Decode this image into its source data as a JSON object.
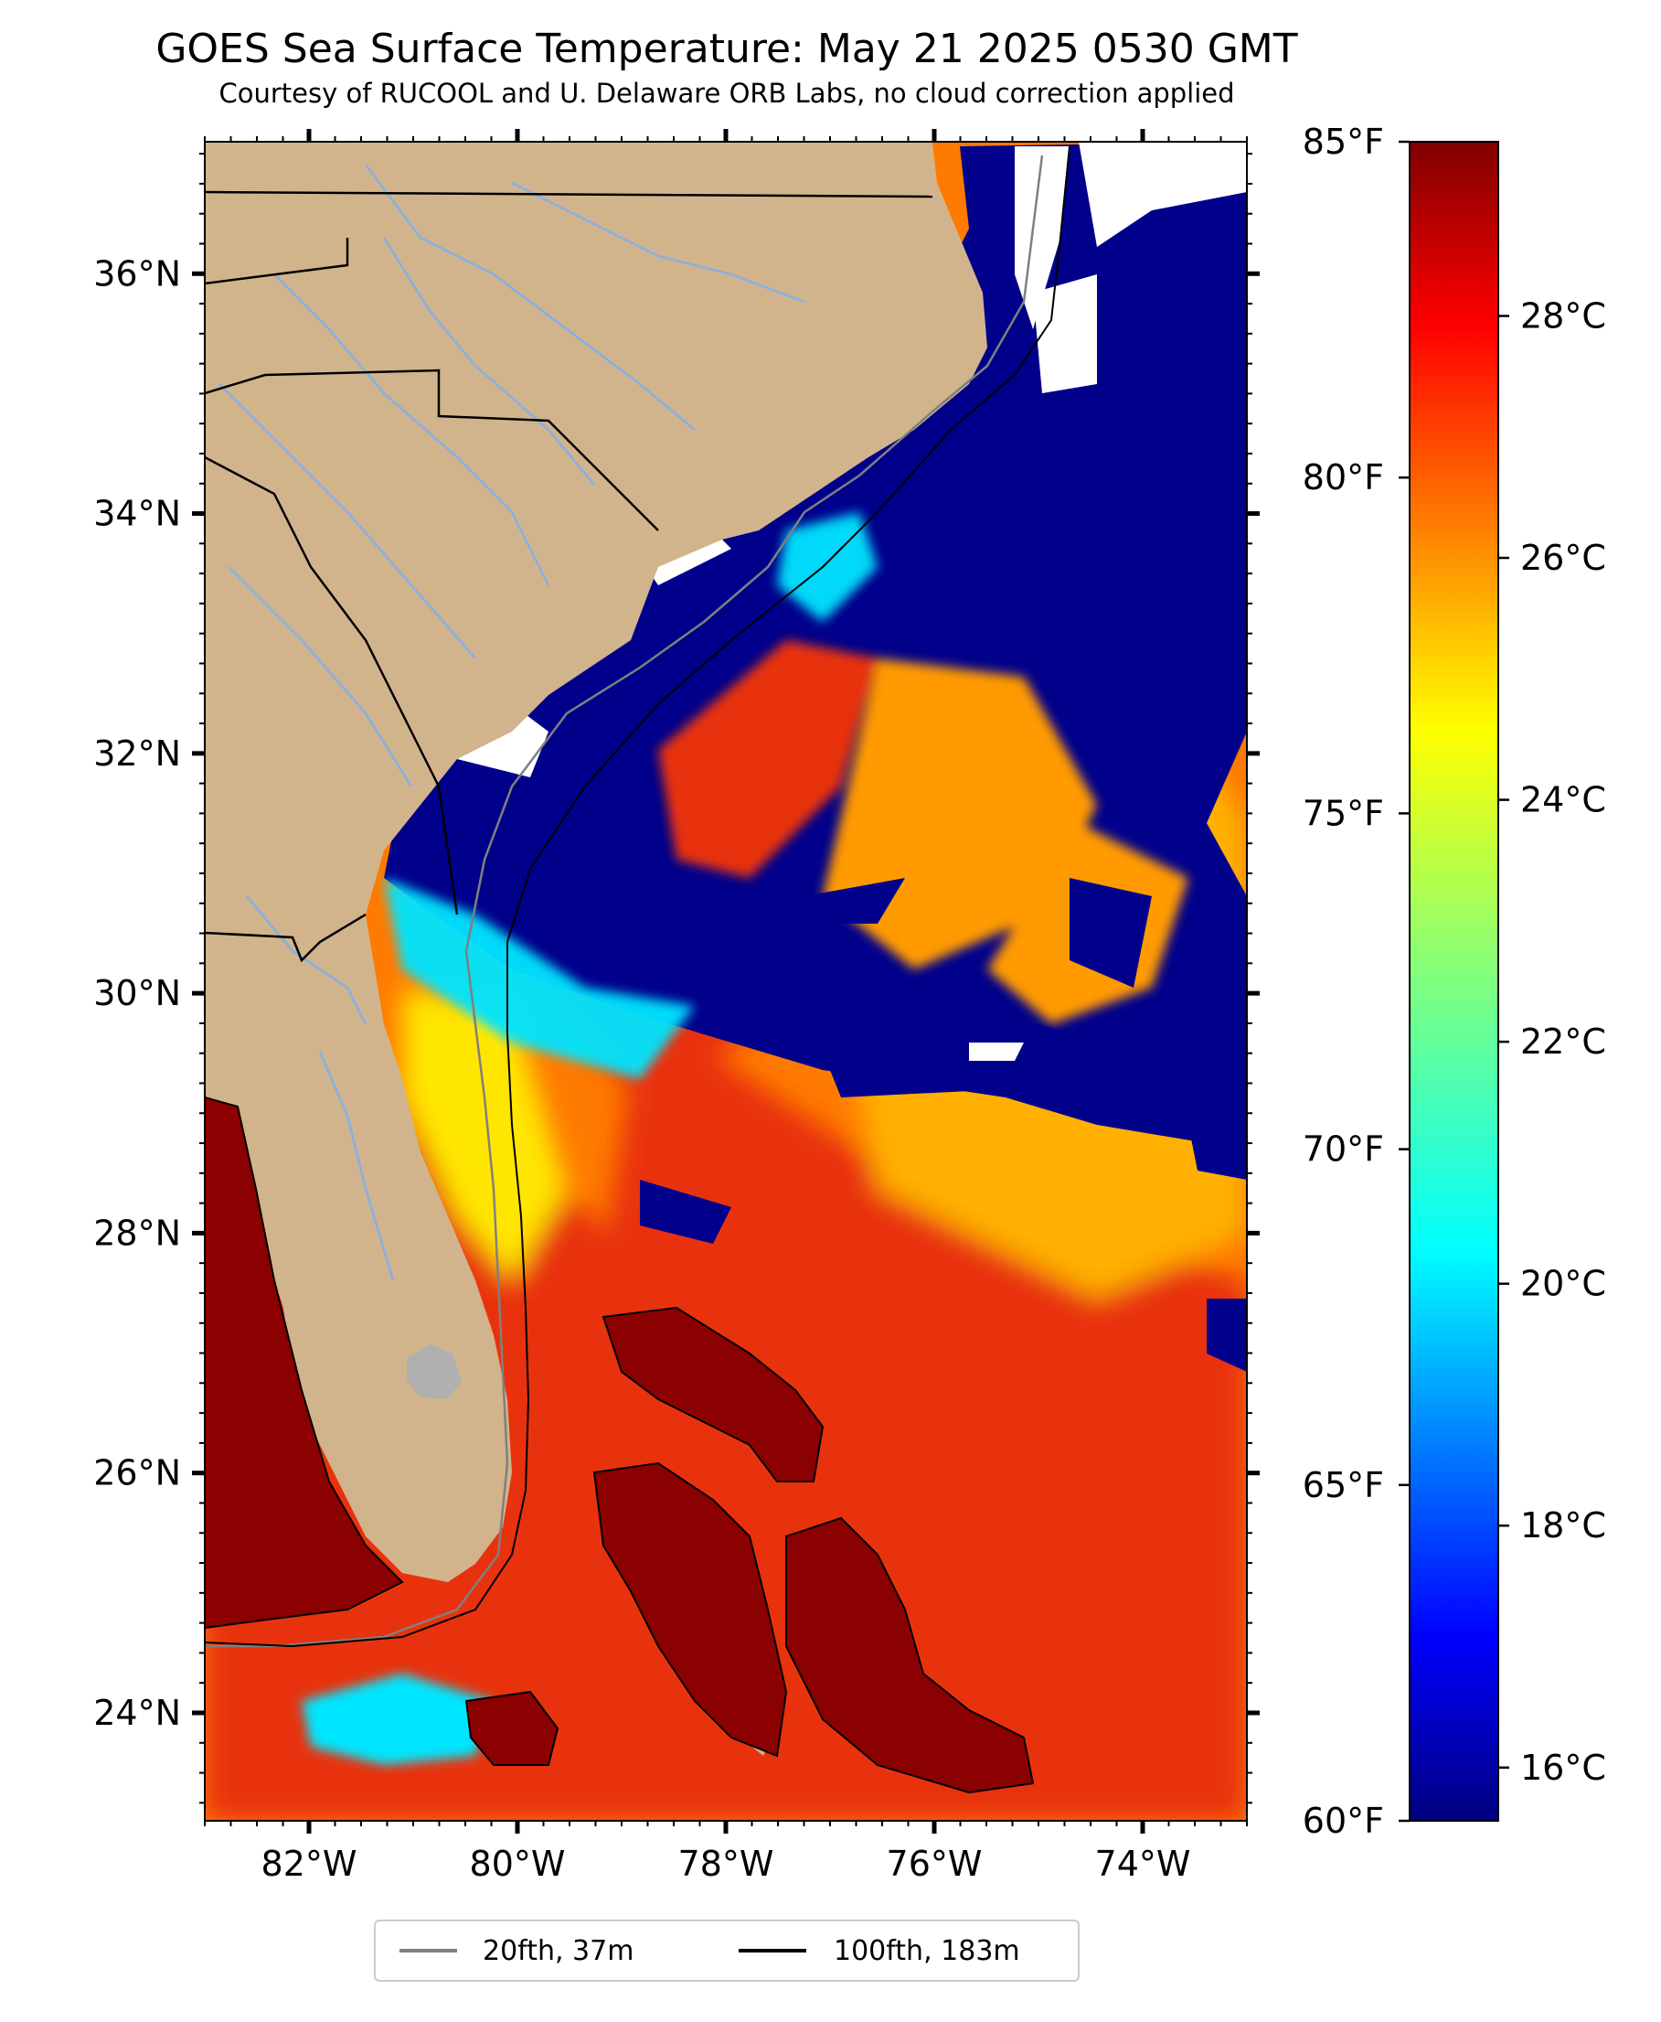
{
  "figure": {
    "title": "GOES Sea Surface Temperature: May 21 2025 0530 GMT",
    "subtitle": "Courtesy of RUCOOL and U. Delaware ORB Labs, no cloud correction applied"
  },
  "map": {
    "lon_range": [
      -83.0,
      -73.0
    ],
    "lat_range": [
      23.1,
      37.1
    ],
    "lon_ticks": [
      {
        "value": -82,
        "label": "82°W"
      },
      {
        "value": -80,
        "label": "80°W"
      },
      {
        "value": -78,
        "label": "78°W"
      },
      {
        "value": -76,
        "label": "76°W"
      },
      {
        "value": -74,
        "label": "74°W"
      }
    ],
    "lat_ticks": [
      {
        "value": 24,
        "label": "24°N"
      },
      {
        "value": 26,
        "label": "26°N"
      },
      {
        "value": 28,
        "label": "28°N"
      },
      {
        "value": 30,
        "label": "30°N"
      },
      {
        "value": 32,
        "label": "32°N"
      },
      {
        "value": 34,
        "label": "34°N"
      },
      {
        "value": 36,
        "label": "36°N"
      }
    ],
    "colors": {
      "land": "#d2b48c",
      "ocean_warm": "#e8300a",
      "ocean_hot": "#a00000",
      "ocean_orange": "#ff8c00",
      "cloud_cold": "#00008b",
      "cyan": "#00e5ff",
      "yellow": "#ffe600",
      "cloud_gap": "#ffffff",
      "river": "#8fb0d8",
      "lake": "#b0b0b0",
      "isobath_20": "#808080",
      "isobath_100": "#000000"
    }
  },
  "colorbar": {
    "colormap": "jet",
    "celsius_range": [
      15.56,
      29.44
    ],
    "celsius_ticks": [
      {
        "value": 16,
        "label": "16°C"
      },
      {
        "value": 18,
        "label": "18°C"
      },
      {
        "value": 20,
        "label": "20°C"
      },
      {
        "value": 22,
        "label": "22°C"
      },
      {
        "value": 24,
        "label": "24°C"
      },
      {
        "value": 26,
        "label": "26°C"
      },
      {
        "value": 28,
        "label": "28°C"
      }
    ],
    "fahrenheit_range": [
      60,
      85
    ],
    "fahrenheit_ticks": [
      {
        "value": 60,
        "label": "60°F"
      },
      {
        "value": 65,
        "label": "65°F"
      },
      {
        "value": 70,
        "label": "70°F"
      },
      {
        "value": 75,
        "label": "75°F"
      },
      {
        "value": 80,
        "label": "80°F"
      },
      {
        "value": 85,
        "label": "85°F"
      }
    ]
  },
  "legend": {
    "placement": "bottom-center",
    "items": [
      {
        "label": "20fth, 37m",
        "color": "#808080"
      },
      {
        "label": "100fth, 183m",
        "color": "#000000"
      }
    ]
  }
}
